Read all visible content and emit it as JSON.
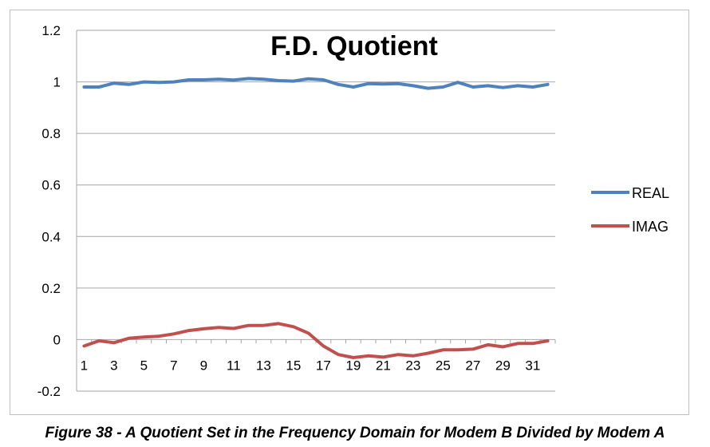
{
  "caption": "Figure 38 - A Quotient Set in the Frequency Domain for Modem B Divided by Modem A",
  "chart_data": {
    "type": "line",
    "title": "F.D. Quotient",
    "xlabel": "",
    "ylabel": "",
    "ylim": [
      -0.2,
      1.2
    ],
    "yticks": [
      -0.2,
      0,
      0.2,
      0.4,
      0.6,
      0.8,
      1,
      1.2
    ],
    "ytick_labels": [
      "-0.2",
      "0",
      "0.2",
      "0.4",
      "0.6",
      "0.8",
      "1",
      "1.2"
    ],
    "x": [
      1,
      2,
      3,
      4,
      5,
      6,
      7,
      8,
      9,
      10,
      11,
      12,
      13,
      14,
      15,
      16,
      17,
      18,
      19,
      20,
      21,
      22,
      23,
      24,
      25,
      26,
      27,
      28,
      29,
      30,
      31,
      32
    ],
    "xtick_labels": [
      "1",
      "3",
      "5",
      "7",
      "9",
      "11",
      "13",
      "15",
      "17",
      "19",
      "21",
      "23",
      "25",
      "27",
      "29",
      "31"
    ],
    "grid": "horizontal",
    "legend_position": "right",
    "series": [
      {
        "name": "REAL",
        "color": "#4f81bd",
        "values": [
          0.98,
          0.98,
          0.995,
          0.99,
          1.0,
          0.998,
          1.0,
          1.008,
          1.008,
          1.01,
          1.007,
          1.013,
          1.01,
          1.005,
          1.003,
          1.012,
          1.008,
          0.99,
          0.98,
          0.993,
          0.992,
          0.993,
          0.985,
          0.975,
          0.98,
          0.998,
          0.98,
          0.985,
          0.978,
          0.985,
          0.98,
          0.99
        ]
      },
      {
        "name": "IMAG",
        "color": "#c0504d",
        "values": [
          -0.025,
          -0.005,
          -0.012,
          0.005,
          0.01,
          0.013,
          0.022,
          0.035,
          0.042,
          0.047,
          0.043,
          0.055,
          0.055,
          0.062,
          0.05,
          0.025,
          -0.025,
          -0.058,
          -0.07,
          -0.063,
          -0.068,
          -0.058,
          -0.063,
          -0.053,
          -0.04,
          -0.04,
          -0.037,
          -0.02,
          -0.028,
          -0.015,
          -0.015,
          -0.005
        ]
      }
    ]
  }
}
